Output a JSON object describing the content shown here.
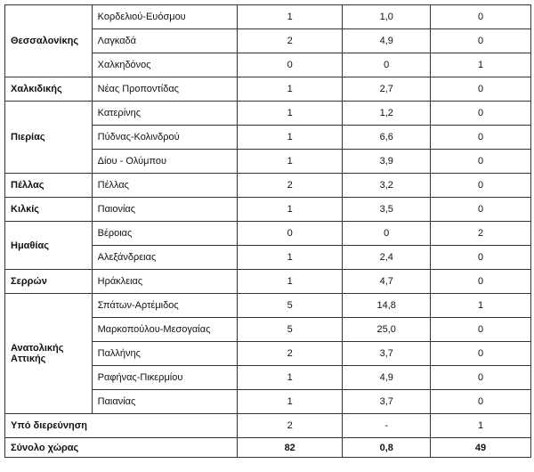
{
  "groups": [
    {
      "region": "Θεσσαλονίκης",
      "rows": [
        [
          "Κορδελιού-Ευόσμου",
          "1",
          "1,0",
          "0"
        ],
        [
          "Λαγκαδά",
          "2",
          "4,9",
          "0"
        ],
        [
          "Χαλκηδόνος",
          "0",
          "0",
          "1"
        ]
      ]
    },
    {
      "region": "Χαλκιδικής",
      "rows": [
        [
          "Νέας Προποντίδας",
          "1",
          "2,7",
          "0"
        ]
      ]
    },
    {
      "region": "Πιερίας",
      "rows": [
        [
          "Κατερίνης",
          "1",
          "1,2",
          "0"
        ],
        [
          "Πύδνας-Κολινδρού",
          "1",
          "6,6",
          "0"
        ],
        [
          "Δίου - Ολύμπου",
          "1",
          "3,9",
          "0"
        ]
      ]
    },
    {
      "region": "Πέλλας",
      "rows": [
        [
          "Πέλλας",
          "2",
          "3,2",
          "0"
        ]
      ]
    },
    {
      "region": "Κιλκίς",
      "rows": [
        [
          "Παιονίας",
          "1",
          "3,5",
          "0"
        ]
      ]
    },
    {
      "region": "Ημαθίας",
      "rows": [
        [
          "Βέροιας",
          "0",
          "0",
          "2"
        ],
        [
          "Αλεξάνδρειας",
          "1",
          "2,4",
          "0"
        ]
      ]
    },
    {
      "region": "Σερρών",
      "rows": [
        [
          "Ηράκλειας",
          "1",
          "4,7",
          "0"
        ]
      ]
    },
    {
      "region": "Ανατολικής Αττικής",
      "rows": [
        [
          "Σπάτων-Αρτέμιδος",
          "5",
          "14,8",
          "1"
        ],
        [
          "Μαρκοπούλου-Μεσογαίας",
          "5",
          "25,0",
          "0"
        ],
        [
          "Παλλήνης",
          "2",
          "3,7",
          "0"
        ],
        [
          "Ραφήνας-Πικερμίου",
          "1",
          "4,9",
          "0"
        ],
        [
          "Παιανίας",
          "1",
          "3,7",
          "0"
        ]
      ]
    }
  ],
  "footer": [
    {
      "label": "Υπό διερεύνηση",
      "v1": "2",
      "v2": "-",
      "v3": "1"
    },
    {
      "label": "Σύνολο χώρας",
      "v1": "82",
      "v2": "0,8",
      "v3": "49"
    }
  ]
}
